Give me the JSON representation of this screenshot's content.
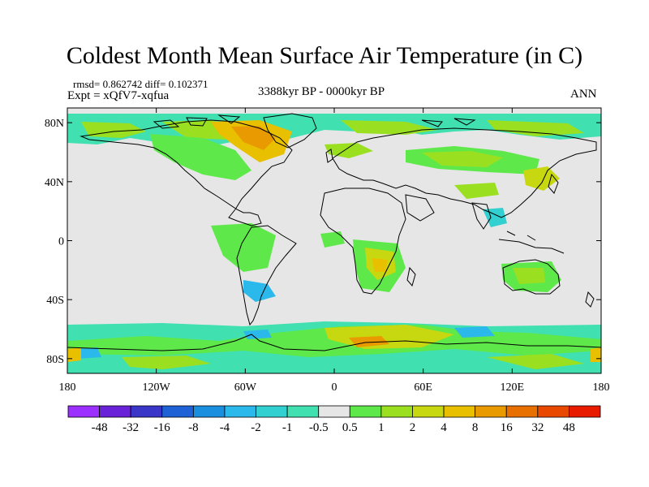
{
  "title": "Coldest Month Mean Surface Air Temperature (in C)",
  "stats": "rmsd= 0.862742  diff= 0.102371",
  "experiment": "Expt = xQfV7-xqfua",
  "period": "3388kyr BP - 0000kyr BP",
  "season": "ANN",
  "map": {
    "lon_range": [
      -180,
      180
    ],
    "lat_range": [
      -90,
      90
    ],
    "x_ticks": [
      {
        "value": -180,
        "label": "180"
      },
      {
        "value": -120,
        "label": "120W"
      },
      {
        "value": -60,
        "label": "60W"
      },
      {
        "value": 0,
        "label": "0"
      },
      {
        "value": 60,
        "label": "60E"
      },
      {
        "value": 120,
        "label": "120E"
      },
      {
        "value": 180,
        "label": "180"
      }
    ],
    "y_ticks": [
      {
        "value": 80,
        "label": "80N"
      },
      {
        "value": 40,
        "label": "40N"
      },
      {
        "value": 0,
        "label": "0"
      },
      {
        "value": -40,
        "label": "40S"
      },
      {
        "value": -80,
        "label": "80S"
      }
    ]
  },
  "colorbar": {
    "colors": [
      "#9b30ff",
      "#6a22d8",
      "#3a37c8",
      "#1e62d6",
      "#1a8fe0",
      "#2bb8ea",
      "#32d0d0",
      "#40e0b0",
      "#e6e6e6",
      "#5ee84a",
      "#9be020",
      "#c8d810",
      "#e8c000",
      "#e89a00",
      "#e87000",
      "#e84800",
      "#e81a00"
    ],
    "labels": [
      "-48",
      "-32",
      "-16",
      "-8",
      "-4",
      "-2",
      "-1",
      "-0.5",
      "0.5",
      "1",
      "2",
      "4",
      "8",
      "16",
      "32",
      "48"
    ]
  }
}
